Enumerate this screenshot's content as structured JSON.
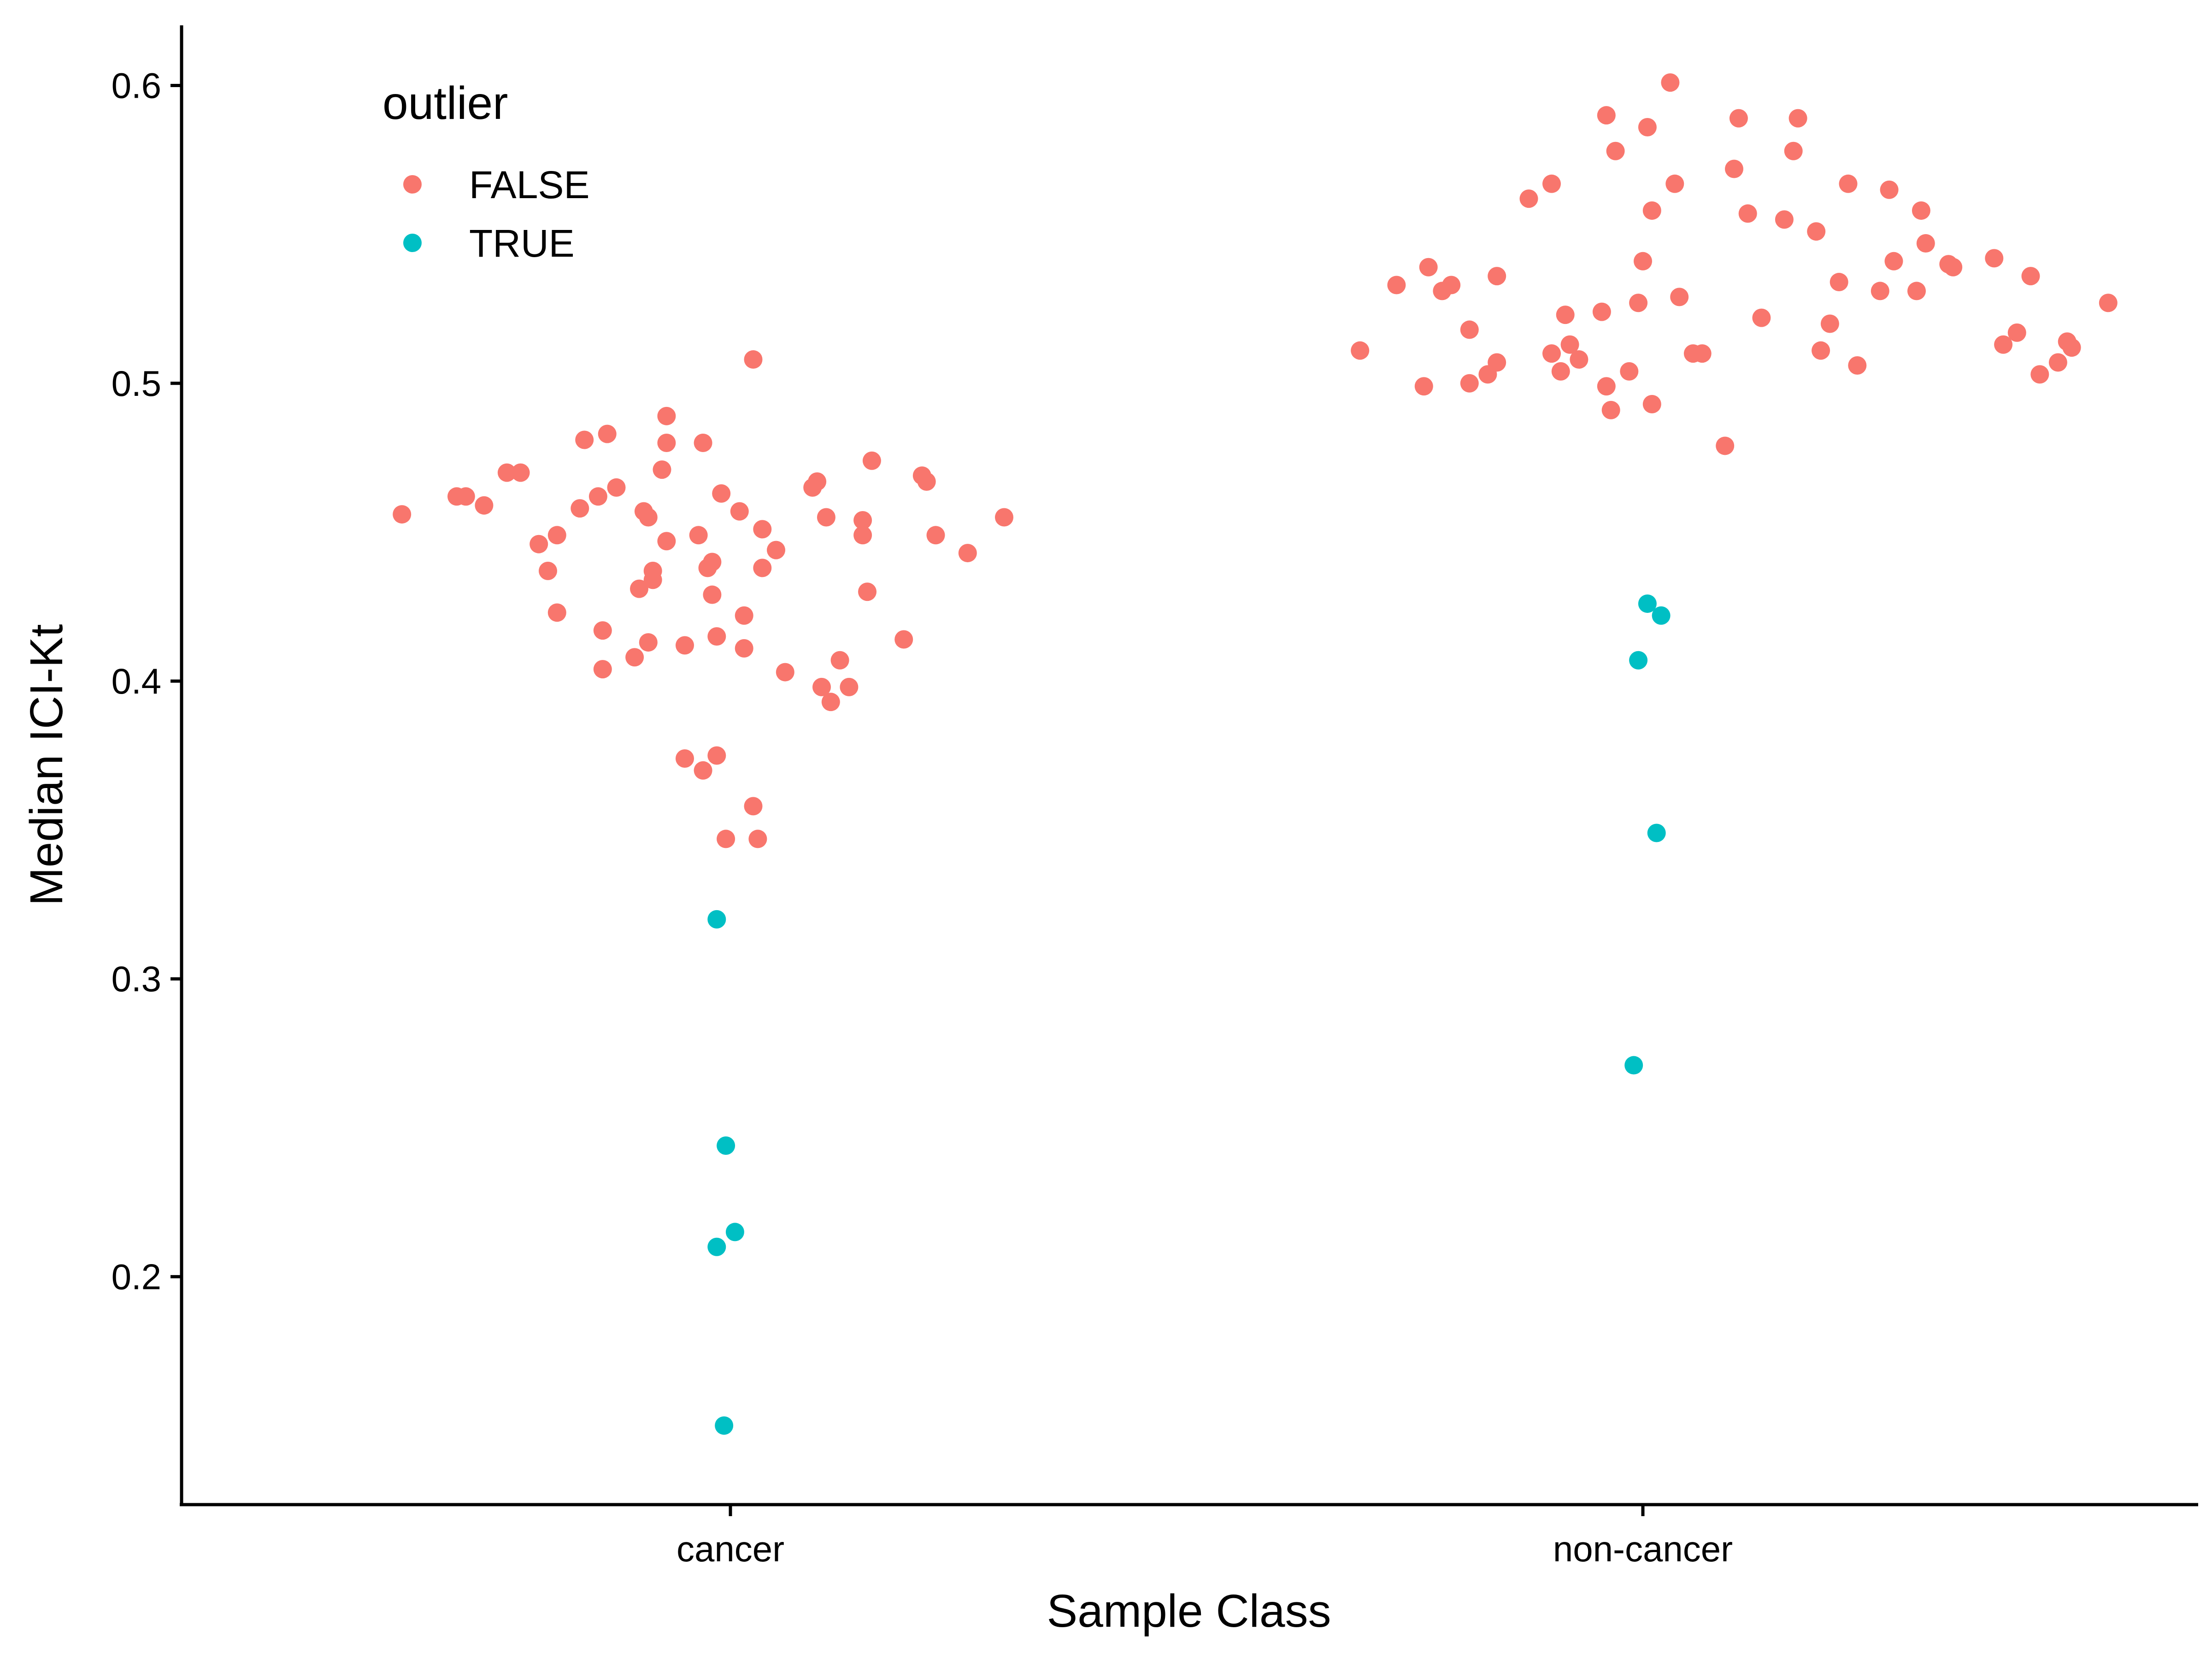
{
  "chart_data": {
    "type": "scatter",
    "xlabel": "Sample Class",
    "ylabel": "Median ICI-Kt",
    "categories": [
      "cancer",
      "non-cancer"
    ],
    "ylim": [
      0.125,
      0.625
    ],
    "y_ticks": [
      "0.2",
      "0.3",
      "0.4",
      "0.5",
      "0.6"
    ],
    "grid": false,
    "legend": {
      "title": "outlier",
      "placement": "top-left",
      "entries": [
        {
          "label": "FALSE",
          "color": "#F8766D"
        },
        {
          "label": "TRUE",
          "color": "#00BFC4"
        }
      ]
    },
    "series": [
      {
        "name": "FALSE",
        "color": "#F8766D",
        "points": [
          {
            "x": 0.64,
            "y": 0.456
          },
          {
            "x": 0.7,
            "y": 0.462
          },
          {
            "x": 0.71,
            "y": 0.462
          },
          {
            "x": 0.73,
            "y": 0.459
          },
          {
            "x": 0.755,
            "y": 0.47
          },
          {
            "x": 0.77,
            "y": 0.47
          },
          {
            "x": 0.79,
            "y": 0.446
          },
          {
            "x": 0.8,
            "y": 0.437
          },
          {
            "x": 0.81,
            "y": 0.449
          },
          {
            "x": 0.81,
            "y": 0.423
          },
          {
            "x": 0.835,
            "y": 0.458
          },
          {
            "x": 0.84,
            "y": 0.481
          },
          {
            "x": 0.855,
            "y": 0.462
          },
          {
            "x": 0.86,
            "y": 0.404
          },
          {
            "x": 0.86,
            "y": 0.417
          },
          {
            "x": 0.865,
            "y": 0.483
          },
          {
            "x": 0.875,
            "y": 0.465
          },
          {
            "x": 0.895,
            "y": 0.408
          },
          {
            "x": 0.9,
            "y": 0.431
          },
          {
            "x": 0.905,
            "y": 0.457
          },
          {
            "x": 0.91,
            "y": 0.455
          },
          {
            "x": 0.91,
            "y": 0.413
          },
          {
            "x": 0.915,
            "y": 0.437
          },
          {
            "x": 0.915,
            "y": 0.434
          },
          {
            "x": 0.925,
            "y": 0.471
          },
          {
            "x": 0.93,
            "y": 0.489
          },
          {
            "x": 0.93,
            "y": 0.48
          },
          {
            "x": 0.93,
            "y": 0.447
          },
          {
            "x": 0.95,
            "y": 0.412
          },
          {
            "x": 0.95,
            "y": 0.374
          },
          {
            "x": 0.965,
            "y": 0.449
          },
          {
            "x": 0.97,
            "y": 0.37
          },
          {
            "x": 0.97,
            "y": 0.48
          },
          {
            "x": 0.975,
            "y": 0.438
          },
          {
            "x": 0.98,
            "y": 0.44
          },
          {
            "x": 0.98,
            "y": 0.429
          },
          {
            "x": 0.985,
            "y": 0.375
          },
          {
            "x": 0.985,
            "y": 0.415
          },
          {
            "x": 0.99,
            "y": 0.463
          },
          {
            "x": 0.995,
            "y": 0.347
          },
          {
            "x": 1.01,
            "y": 0.457
          },
          {
            "x": 1.015,
            "y": 0.422
          },
          {
            "x": 1.015,
            "y": 0.411
          },
          {
            "x": 1.025,
            "y": 0.358
          },
          {
            "x": 1.025,
            "y": 0.508
          },
          {
            "x": 1.03,
            "y": 0.347
          },
          {
            "x": 1.035,
            "y": 0.451
          },
          {
            "x": 1.035,
            "y": 0.438
          },
          {
            "x": 1.05,
            "y": 0.444
          },
          {
            "x": 1.06,
            "y": 0.403
          },
          {
            "x": 1.09,
            "y": 0.465
          },
          {
            "x": 1.095,
            "y": 0.467
          },
          {
            "x": 1.1,
            "y": 0.398
          },
          {
            "x": 1.105,
            "y": 0.455
          },
          {
            "x": 1.11,
            "y": 0.393
          },
          {
            "x": 1.12,
            "y": 0.407
          },
          {
            "x": 1.13,
            "y": 0.398
          },
          {
            "x": 1.145,
            "y": 0.454
          },
          {
            "x": 1.145,
            "y": 0.449
          },
          {
            "x": 1.15,
            "y": 0.43
          },
          {
            "x": 1.155,
            "y": 0.474
          },
          {
            "x": 1.19,
            "y": 0.414
          },
          {
            "x": 1.21,
            "y": 0.469
          },
          {
            "x": 1.215,
            "y": 0.467
          },
          {
            "x": 1.225,
            "y": 0.449
          },
          {
            "x": 1.26,
            "y": 0.443
          },
          {
            "x": 1.3,
            "y": 0.455
          },
          {
            "x": 1.69,
            "y": 0.511
          },
          {
            "x": 1.73,
            "y": 0.533
          },
          {
            "x": 1.76,
            "y": 0.499
          },
          {
            "x": 1.765,
            "y": 0.539
          },
          {
            "x": 1.78,
            "y": 0.531
          },
          {
            "x": 1.79,
            "y": 0.533
          },
          {
            "x": 1.81,
            "y": 0.518
          },
          {
            "x": 1.81,
            "y": 0.5
          },
          {
            "x": 1.83,
            "y": 0.503
          },
          {
            "x": 1.84,
            "y": 0.536
          },
          {
            "x": 1.84,
            "y": 0.507
          },
          {
            "x": 1.875,
            "y": 0.562
          },
          {
            "x": 1.9,
            "y": 0.567
          },
          {
            "x": 1.9,
            "y": 0.51
          },
          {
            "x": 1.91,
            "y": 0.504
          },
          {
            "x": 1.915,
            "y": 0.523
          },
          {
            "x": 1.92,
            "y": 0.513
          },
          {
            "x": 1.93,
            "y": 0.508
          },
          {
            "x": 1.955,
            "y": 0.524
          },
          {
            "x": 1.96,
            "y": 0.59
          },
          {
            "x": 1.96,
            "y": 0.499
          },
          {
            "x": 1.965,
            "y": 0.491
          },
          {
            "x": 1.97,
            "y": 0.578
          },
          {
            "x": 1.985,
            "y": 0.504
          },
          {
            "x": 1.995,
            "y": 0.527
          },
          {
            "x": 2.0,
            "y": 0.541
          },
          {
            "x": 2.005,
            "y": 0.586
          },
          {
            "x": 2.01,
            "y": 0.558
          },
          {
            "x": 2.01,
            "y": 0.493
          },
          {
            "x": 2.03,
            "y": 0.601
          },
          {
            "x": 2.035,
            "y": 0.567
          },
          {
            "x": 2.04,
            "y": 0.529
          },
          {
            "x": 2.055,
            "y": 0.51
          },
          {
            "x": 2.065,
            "y": 0.51
          },
          {
            "x": 2.09,
            "y": 0.479
          },
          {
            "x": 2.1,
            "y": 0.572
          },
          {
            "x": 2.105,
            "y": 0.589
          },
          {
            "x": 2.115,
            "y": 0.557
          },
          {
            "x": 2.13,
            "y": 0.522
          },
          {
            "x": 2.155,
            "y": 0.555
          },
          {
            "x": 2.165,
            "y": 0.578
          },
          {
            "x": 2.17,
            "y": 0.589
          },
          {
            "x": 2.19,
            "y": 0.551
          },
          {
            "x": 2.195,
            "y": 0.511
          },
          {
            "x": 2.205,
            "y": 0.52
          },
          {
            "x": 2.215,
            "y": 0.534
          },
          {
            "x": 2.225,
            "y": 0.567
          },
          {
            "x": 2.235,
            "y": 0.506
          },
          {
            "x": 2.26,
            "y": 0.531
          },
          {
            "x": 2.27,
            "y": 0.565
          },
          {
            "x": 2.275,
            "y": 0.541
          },
          {
            "x": 2.3,
            "y": 0.531
          },
          {
            "x": 2.305,
            "y": 0.558
          },
          {
            "x": 2.31,
            "y": 0.547
          },
          {
            "x": 2.335,
            "y": 0.54
          },
          {
            "x": 2.34,
            "y": 0.539
          },
          {
            "x": 2.385,
            "y": 0.542
          },
          {
            "x": 2.395,
            "y": 0.513
          },
          {
            "x": 2.41,
            "y": 0.517
          },
          {
            "x": 2.425,
            "y": 0.536
          },
          {
            "x": 2.435,
            "y": 0.503
          },
          {
            "x": 2.455,
            "y": 0.507
          },
          {
            "x": 2.465,
            "y": 0.514
          },
          {
            "x": 2.47,
            "y": 0.512
          },
          {
            "x": 2.51,
            "y": 0.527
          }
        ]
      },
      {
        "name": "TRUE",
        "color": "#00BFC4",
        "points": [
          {
            "x": 0.985,
            "y": 0.32
          },
          {
            "x": 0.995,
            "y": 0.244
          },
          {
            "x": 0.985,
            "y": 0.21
          },
          {
            "x": 1.005,
            "y": 0.215
          },
          {
            "x": 0.993,
            "y": 0.15
          },
          {
            "x": 2.005,
            "y": 0.426
          },
          {
            "x": 1.995,
            "y": 0.407
          },
          {
            "x": 2.02,
            "y": 0.422
          },
          {
            "x": 2.015,
            "y": 0.349
          },
          {
            "x": 1.99,
            "y": 0.271
          }
        ]
      }
    ]
  }
}
